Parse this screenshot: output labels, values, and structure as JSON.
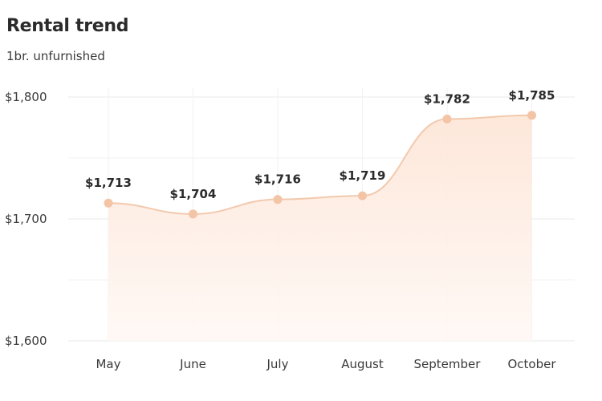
{
  "chart_data": {
    "type": "area",
    "title": "Rental trend",
    "subtitle": "1br. unfurnished",
    "categories": [
      "May",
      "June",
      "July",
      "August",
      "September",
      "October"
    ],
    "values": [
      1713,
      1704,
      1716,
      1719,
      1782,
      1785
    ],
    "data_labels": [
      "$1,713",
      "$1,704",
      "$1,716",
      "$1,719",
      "$1,782",
      "$1,785"
    ],
    "y_ticks": [
      1600,
      1700,
      1800
    ],
    "y_tick_labels": [
      "$1,600",
      "$1,700",
      "$1,800"
    ],
    "ylim": [
      1600,
      1800
    ],
    "grid": true,
    "colors": {
      "line": "#f2c9ad",
      "fill": "#fdeee4",
      "point": "#f3c4a6"
    }
  }
}
